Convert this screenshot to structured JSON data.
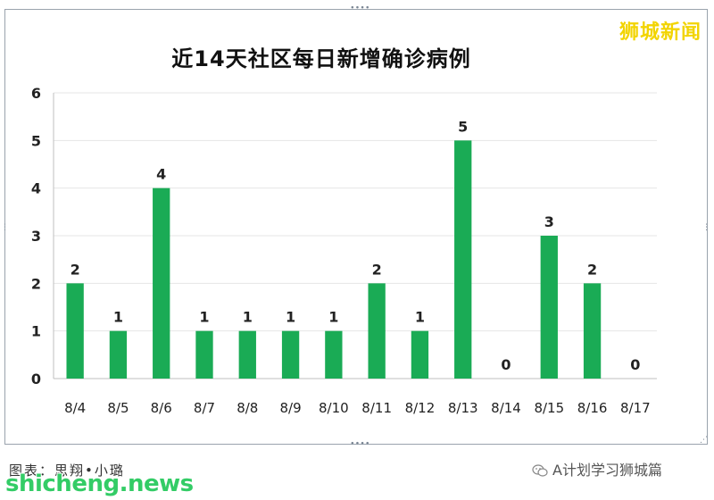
{
  "chart_data": {
    "type": "bar",
    "title": "近14天社区每日新增确诊病例",
    "categories": [
      "8/4",
      "8/5",
      "8/6",
      "8/7",
      "8/8",
      "8/9",
      "8/10",
      "8/11",
      "8/12",
      "8/13",
      "8/14",
      "8/15",
      "8/16",
      "8/17"
    ],
    "values": [
      2,
      1,
      4,
      1,
      1,
      1,
      1,
      2,
      1,
      5,
      0,
      3,
      2,
      0
    ],
    "ylim": [
      0,
      6
    ],
    "yticks": [
      0,
      1,
      2,
      3,
      4,
      5,
      6
    ],
    "grid": true,
    "bar_color": "#1aab55",
    "data_labels": true
  },
  "watermark_top": "狮城新闻",
  "footer": {
    "credit": "图表：思翔•小璐",
    "account": "A计划学习狮城篇",
    "site": "shicheng.news"
  },
  "colors": {
    "site_mark": "#33cc66",
    "watermark": "#f2d400"
  },
  "icons": {
    "footer_icon": "wechat-icon"
  }
}
